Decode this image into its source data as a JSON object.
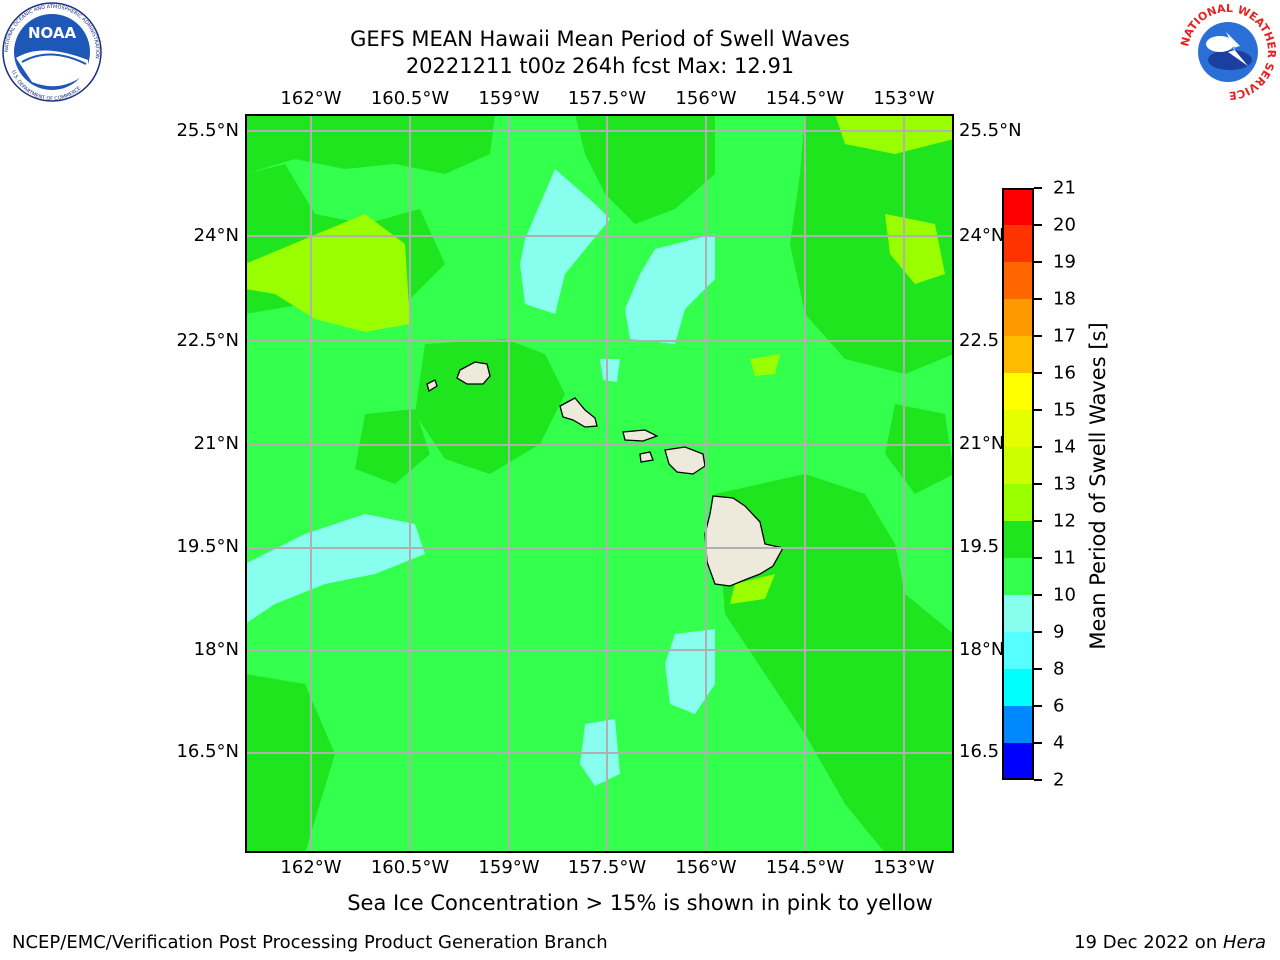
{
  "header": {
    "title": "GEFS MEAN Hawaii Mean Period of Swell Waves",
    "subtitle": "20221211 t00z 264h fcst   Max: 12.91"
  },
  "logos": {
    "noaa_text": "NOAA",
    "noaa_ring": "NATIONAL OCEANIC AND ATMOSPHERIC ADMINISTRATION",
    "noaa_ring_bottom": "U.S. DEPARTMENT OF COMMERCE",
    "nws_ring": "NATIONAL WEATHER SERVICE"
  },
  "map": {
    "lon_labels": [
      "162°W",
      "160.5°W",
      "159°W",
      "157.5°W",
      "156°W",
      "154.5°W",
      "153°W"
    ],
    "lat_labels": [
      "25.5°N",
      "24°N",
      "22.5°N",
      "21°N",
      "19.5°N",
      "18°N",
      "16.5°N"
    ],
    "lat_labels_right": [
      "25.5°N",
      "24°N",
      "22.5",
      "21°N",
      "19.5",
      "18°N",
      "16.5"
    ],
    "grid": true,
    "dominant_fill_hex": "#33ff4d",
    "land_hex": "#eeeadb"
  },
  "colorbar": {
    "label": "Mean Period of Swell Waves [s]",
    "ticks": [
      "21",
      "20",
      "19",
      "18",
      "17",
      "16",
      "15",
      "14",
      "13",
      "12",
      "11",
      "10",
      "9",
      "8",
      "6",
      "4",
      "2"
    ],
    "colors": [
      "#ff0000",
      "#ff3300",
      "#ff6600",
      "#ff9900",
      "#ffbb00",
      "#ffff00",
      "#e6ff00",
      "#ccff00",
      "#99ff00",
      "#1ee51e",
      "#33ff4d",
      "#88ffee",
      "#55ffff",
      "#00ffff",
      "#0088ff",
      "#0000ff"
    ]
  },
  "note": "Sea Ice Concentration > 15% is shown in pink to yellow",
  "footer": {
    "left": "NCEP/EMC/Verification Post Processing Product Generation Branch",
    "right_prefix": "19 Dec 2022 on ",
    "right_host": "Hera"
  }
}
